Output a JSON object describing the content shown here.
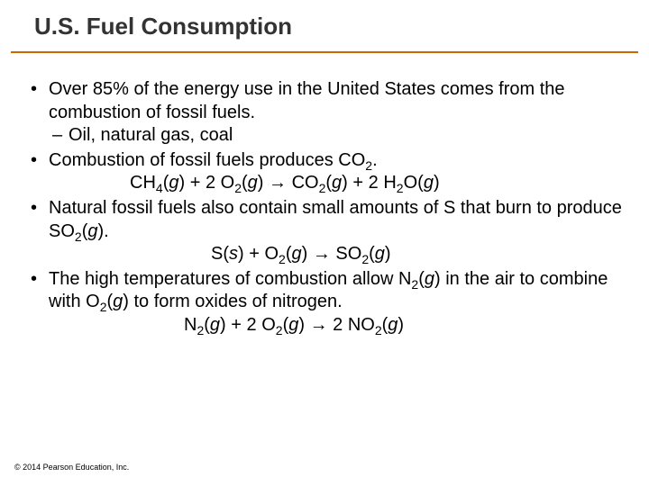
{
  "styling": {
    "background_color": "#ffffff",
    "title_color": "#333333",
    "title_fontsize": 26,
    "rule_color": "#cc6600",
    "body_color": "#000000",
    "body_fontsize": 20,
    "footer_fontsize": 9,
    "font_family": "Arial"
  },
  "title": "U.S. Fuel Consumption",
  "bullets": {
    "b1": "Over 85% of the energy use in the United States comes from the combustion of fossil fuels.",
    "b1_sub": "Oil, natural gas, coal",
    "b2_pre": "Combustion of fossil fuels produces CO",
    "b2_post": ".",
    "b3_pre": "Natural fossil fuels also contain small amounts of S that burn to produce SO",
    "b3_post": ").",
    "b4_pre": "The high temperatures of combustion allow N",
    "b4_mid1": ") in the air to combine with O",
    "b4_mid2": ") to form oxides of nitrogen."
  },
  "sub": {
    "two": "2",
    "four": "4"
  },
  "phase": {
    "g": "g",
    "s": "s"
  },
  "sym": {
    "arrow": "→",
    "plus": " + ",
    "two": "2 "
  },
  "eq": {
    "ch": "CH",
    "o": "O",
    "co": "CO",
    "h": "H",
    "s_el": "S",
    "so": "SO",
    "n": "N",
    "no": "NO"
  },
  "footer": "© 2014 Pearson Education, Inc."
}
